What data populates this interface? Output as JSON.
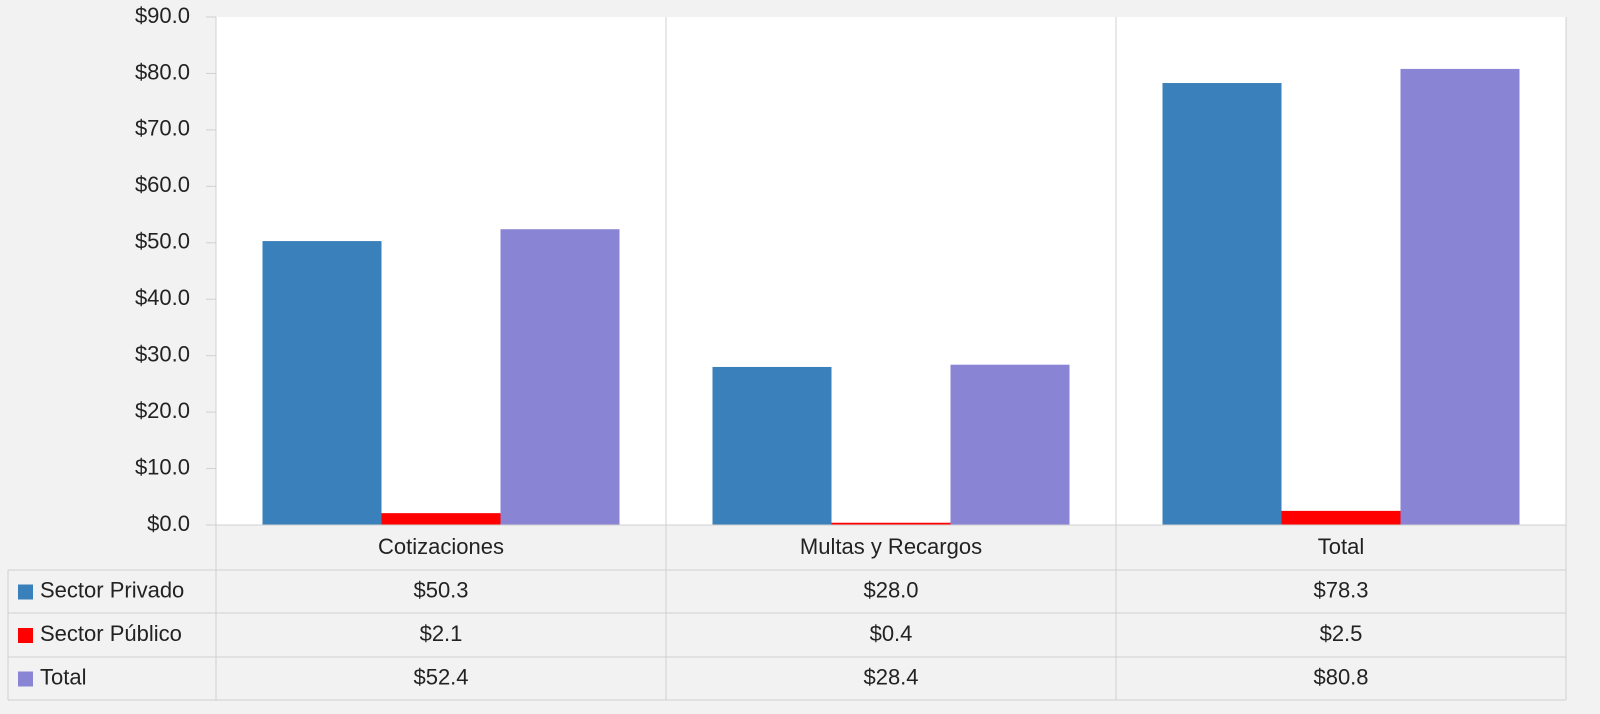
{
  "chart_data": {
    "type": "bar",
    "categories": [
      "Cotizaciones",
      "Multas y Recargos",
      "Total"
    ],
    "series": [
      {
        "name": "Sector Privado",
        "color": "#3a80ba",
        "values": [
          50.3,
          28.0,
          78.3
        ],
        "value_labels": [
          "$50.3",
          "$28.0",
          "$78.3"
        ]
      },
      {
        "name": "Sector Público",
        "color": "#ff0000",
        "values": [
          2.1,
          0.4,
          2.5
        ],
        "value_labels": [
          "$2.1",
          "$0.4",
          "$2.5"
        ]
      },
      {
        "name": "Total",
        "color": "#8a84d4",
        "values": [
          52.4,
          28.4,
          80.8
        ],
        "value_labels": [
          "$52.4",
          "$28.4",
          "$80.8"
        ]
      }
    ],
    "ylim": [
      0,
      90
    ],
    "yticks": [
      {
        "value": 0,
        "label": "$0.0"
      },
      {
        "value": 10,
        "label": "$10.0"
      },
      {
        "value": 20,
        "label": "$20.0"
      },
      {
        "value": 30,
        "label": "$30.0"
      },
      {
        "value": 40,
        "label": "$40.0"
      },
      {
        "value": 50,
        "label": "$50.0"
      },
      {
        "value": 60,
        "label": "$60.0"
      },
      {
        "value": 70,
        "label": "$70.0"
      },
      {
        "value": 80,
        "label": "$80.0"
      },
      {
        "value": 90,
        "label": "$90.0"
      }
    ],
    "data_table": true
  }
}
